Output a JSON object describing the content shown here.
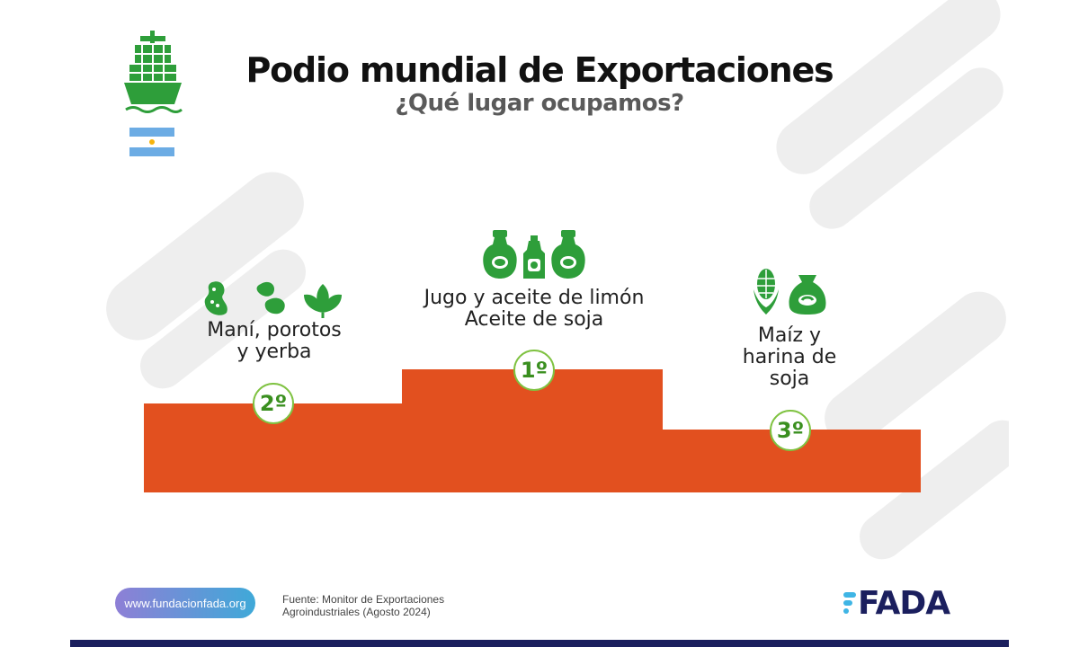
{
  "header": {
    "title": "Podio mundial de Exportaciones",
    "subtitle": "¿Qué lugar ocupamos?"
  },
  "podium": {
    "first": {
      "rank": "1º",
      "line1": "Jugo y aceite de limón",
      "line2": "Aceite de soja"
    },
    "second": {
      "rank": "2º",
      "line1": "Maní, porotos",
      "line2": "y yerba"
    },
    "third": {
      "rank": "3º",
      "line1": "Maíz y",
      "line2": "harina de",
      "line3": "soja"
    }
  },
  "footer": {
    "url": "www.fundacionfada.org",
    "source_line1": "Fuente: Monitor de Exportaciones",
    "source_line2": "Agroindustriales (Agosto 2024)",
    "logo": "FADA"
  },
  "colors": {
    "podium": "#e2501f",
    "icon_green": "#2e9e3a",
    "badge_border": "#7fc241",
    "logo_navy": "#1b1f5e",
    "logo_cyan": "#3fb5e5"
  },
  "icons": [
    "ship-icon",
    "argentina-flag-icon",
    "peanut-icon",
    "bean-icon",
    "yerba-leaf-icon",
    "lemon-bottle-icon",
    "oil-bottle-icon",
    "corn-icon",
    "flour-sack-icon"
  ]
}
